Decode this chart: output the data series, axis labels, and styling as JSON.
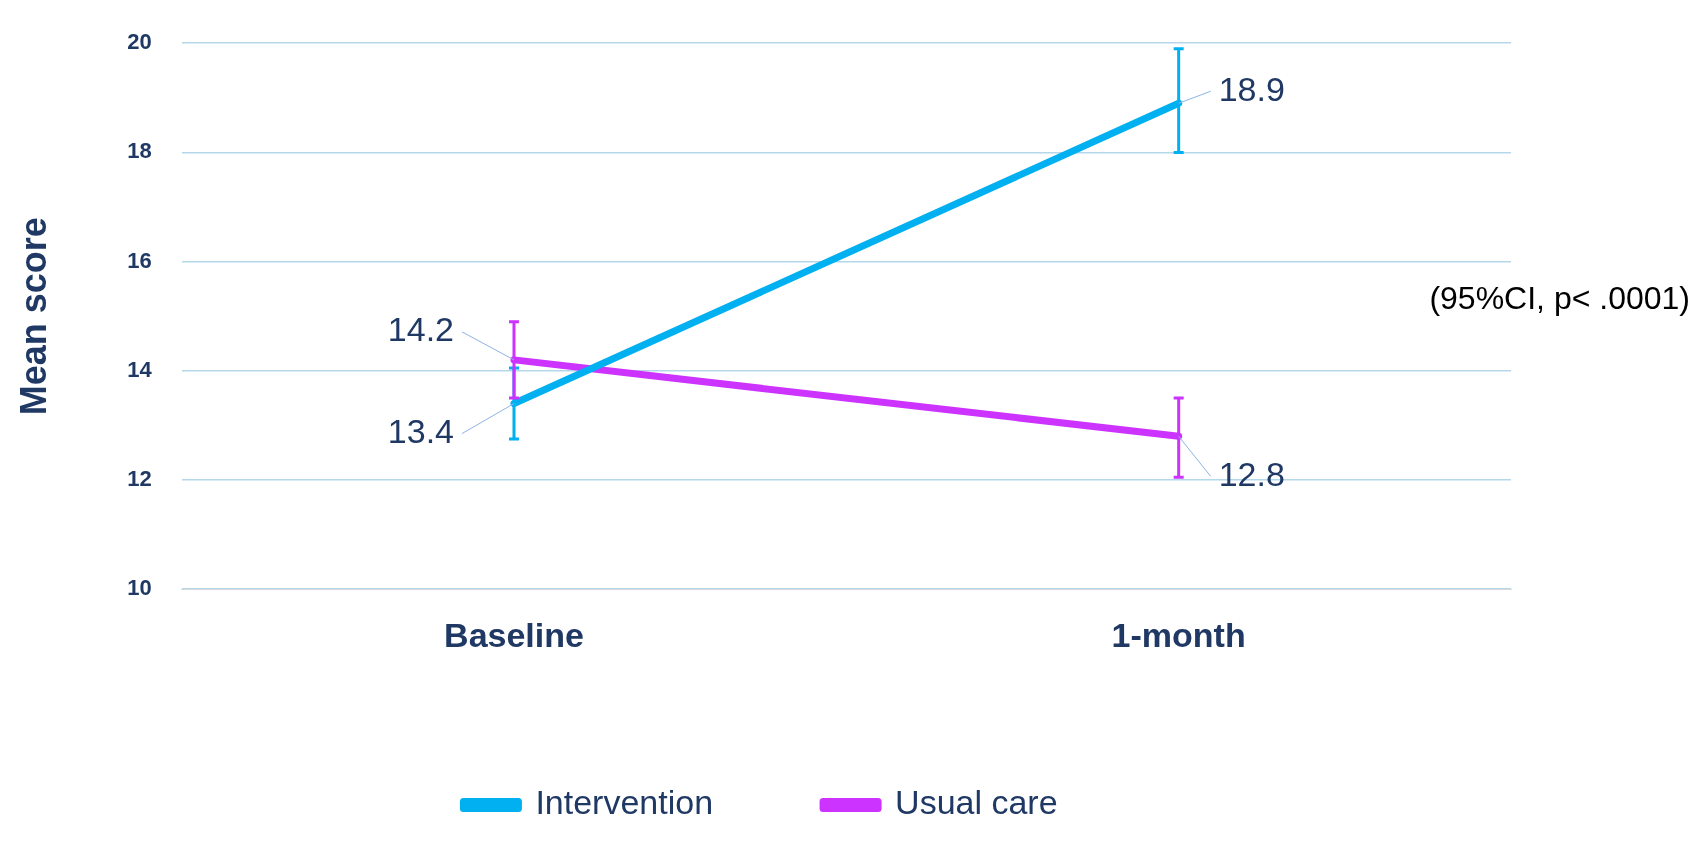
{
  "chart_data": {
    "type": "line",
    "ylabel": "Mean score",
    "categories": [
      "Baseline",
      "1-month"
    ],
    "series": [
      {
        "name": "Intervention",
        "color": "#00b0f0",
        "values": [
          13.4,
          18.9
        ],
        "errors": [
          [
            12.75,
            14.05
          ],
          [
            18.0,
            19.9
          ]
        ]
      },
      {
        "name": "Usual care",
        "color": "#cc33ff",
        "values": [
          14.2,
          12.8
        ],
        "errors": [
          [
            13.5,
            14.9
          ],
          [
            12.05,
            13.5
          ]
        ]
      }
    ],
    "ylim": [
      10,
      20
    ],
    "yticks": [
      10,
      12,
      14,
      16,
      18,
      20
    ],
    "grid": "y",
    "legend": "bottom",
    "data_labels": true,
    "annotations": [
      "(95%CI, p< .0001)"
    ]
  }
}
